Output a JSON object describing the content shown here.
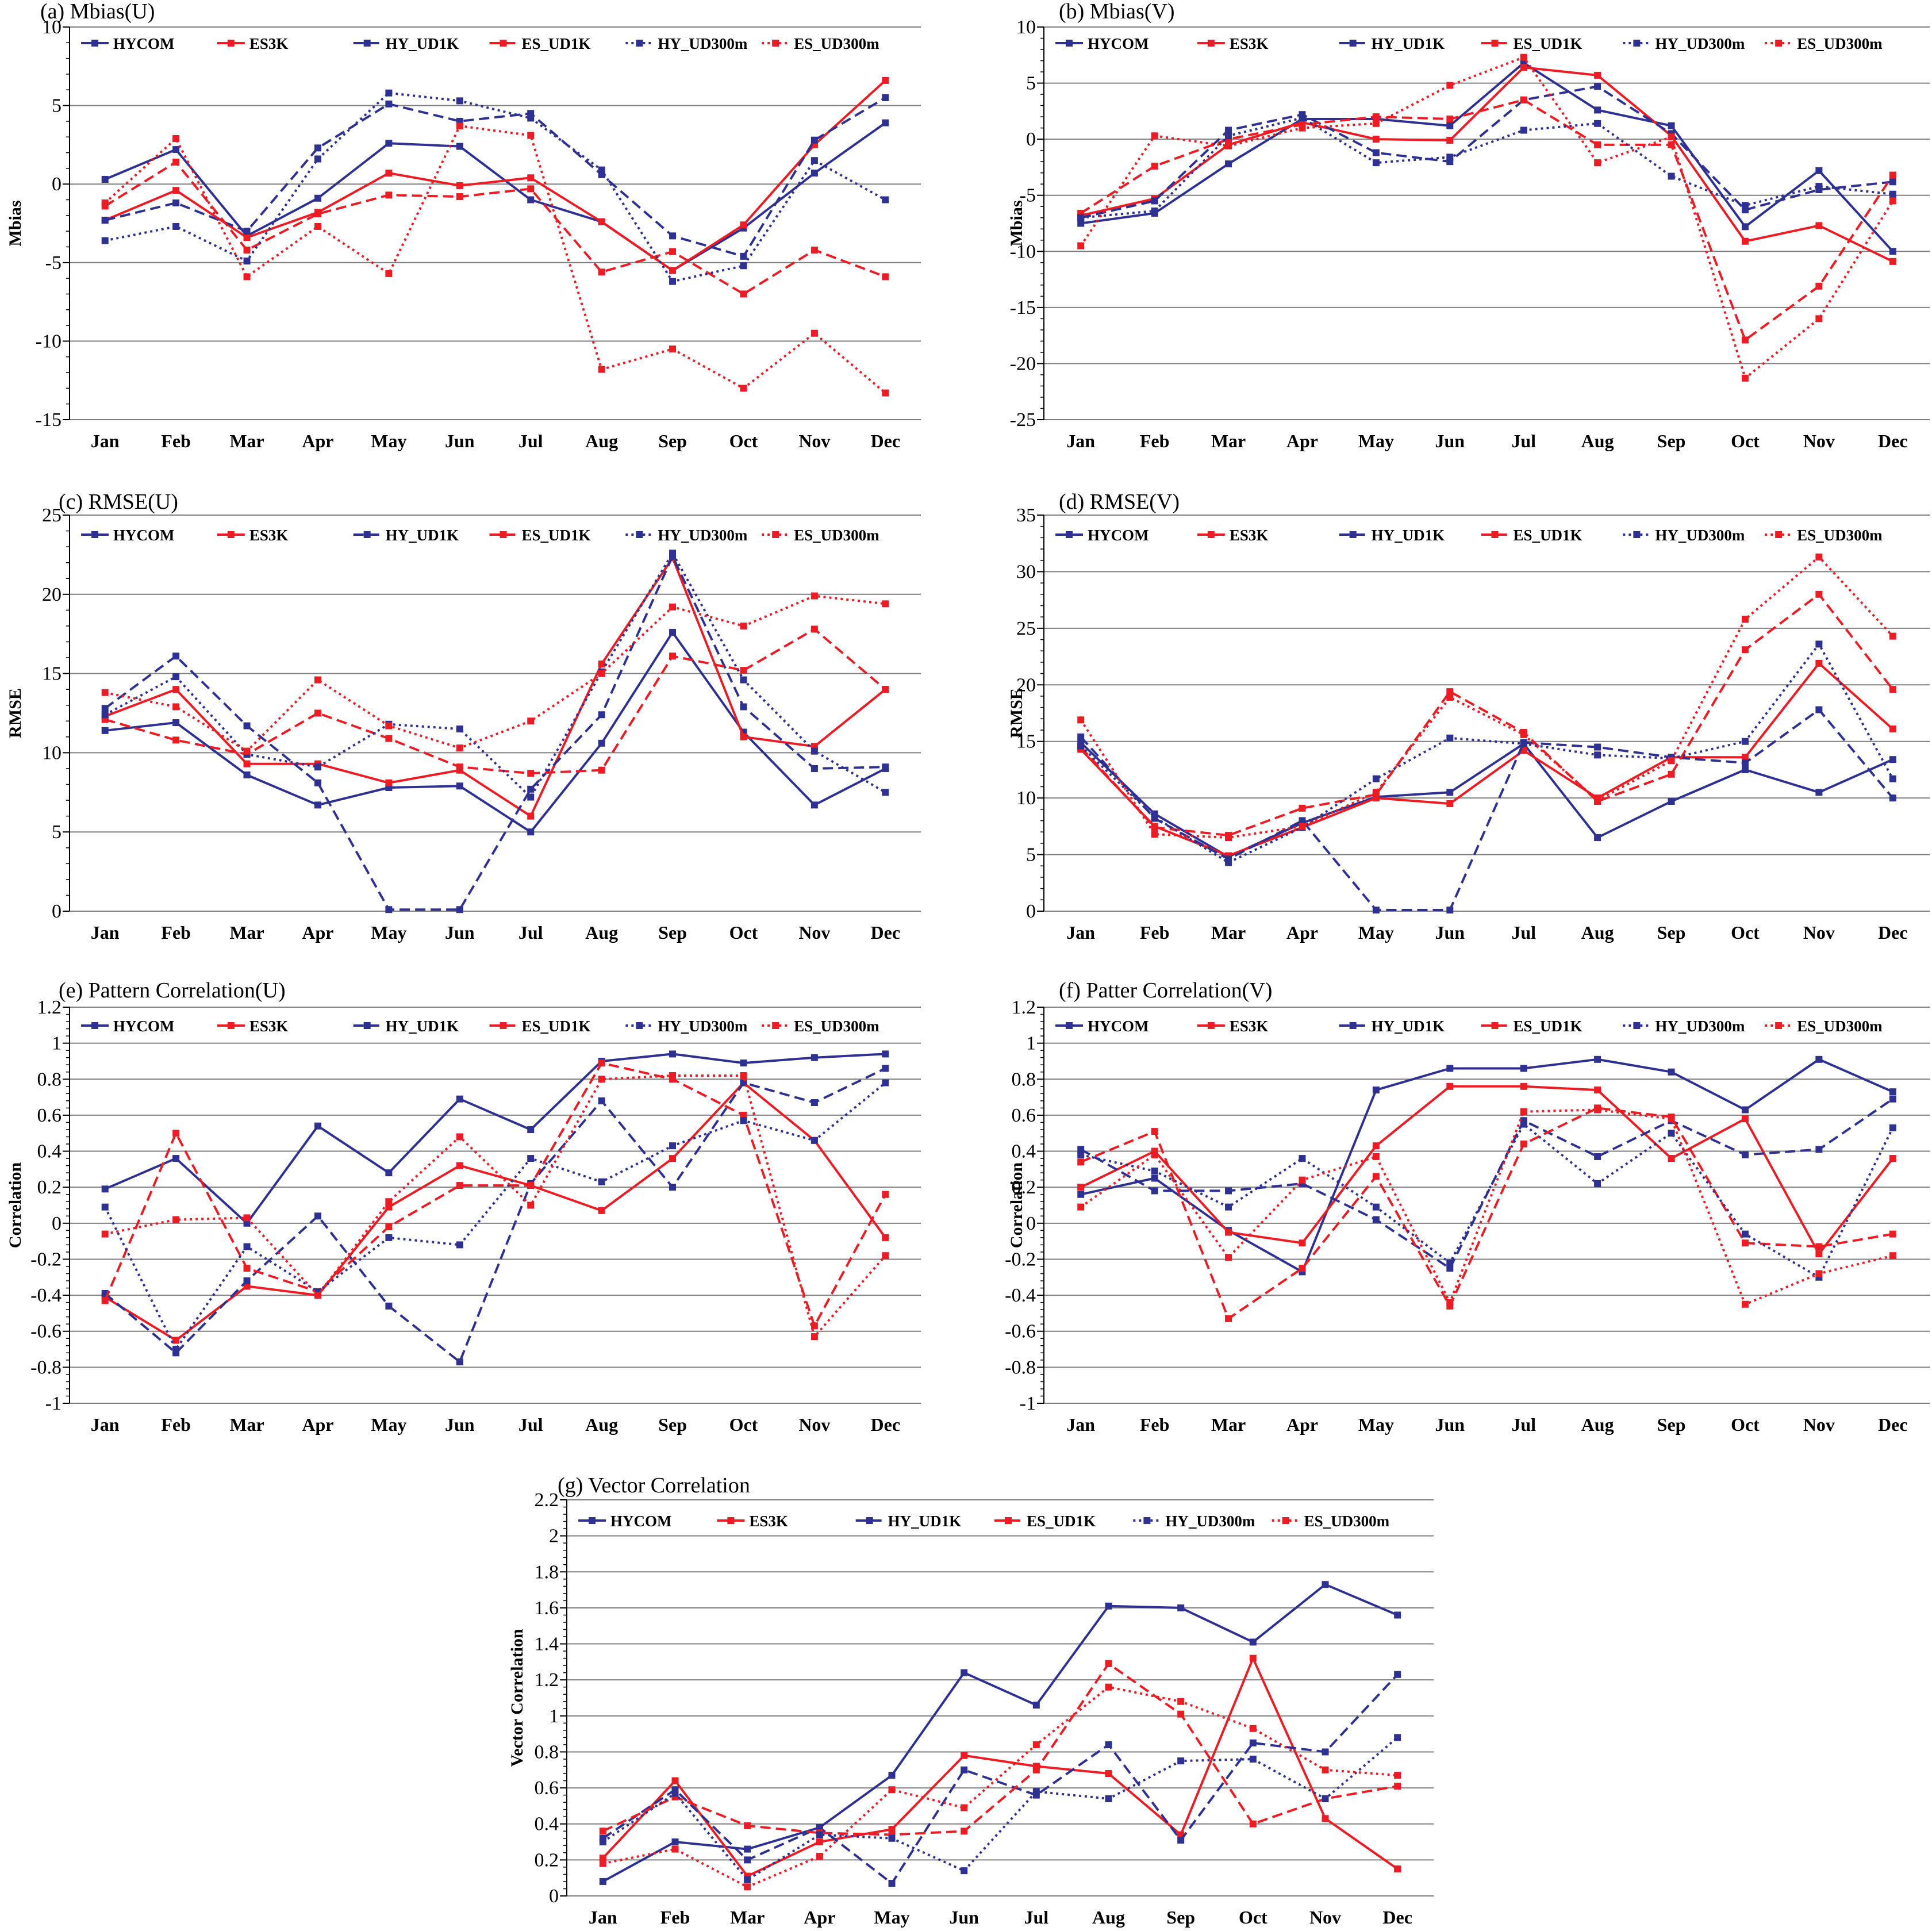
{
  "months": [
    "Jan",
    "Feb",
    "Mar",
    "Apr",
    "May",
    "Jun",
    "Jul",
    "Aug",
    "Sep",
    "Oct",
    "Nov",
    "Dec"
  ],
  "legend": [
    {
      "name": "HYCOM",
      "color": "#2E3192",
      "dash": "solid"
    },
    {
      "name": "ES3K",
      "color": "#ED1C24",
      "dash": "solid"
    },
    {
      "name": "HY_UD1K",
      "color": "#2E3192",
      "dash": "dashed"
    },
    {
      "name": "ES_UD1K",
      "color": "#ED1C24",
      "dash": "dashed"
    },
    {
      "name": "HY_UD300m",
      "color": "#2E3192",
      "dash": "dotted"
    },
    {
      "name": "ES_UD300m",
      "color": "#ED1C24",
      "dash": "dotted"
    }
  ],
  "chart_data": [
    {
      "type": "line",
      "title": "(a) Mbias(U)",
      "ylabel": "Mbias",
      "ylim": [
        -15,
        10
      ],
      "yticks": [
        10,
        5,
        0,
        -5,
        -10,
        -15
      ],
      "ytick_labels": [
        "10",
        "5",
        "0",
        "-5",
        "-10",
        "-15"
      ],
      "series": [
        {
          "name": "HYCOM",
          "values": [
            0.3,
            2.2,
            -3.3,
            -0.9,
            2.6,
            2.4,
            -1.0,
            -2.4,
            -5.5,
            -2.8,
            0.7,
            3.9
          ]
        },
        {
          "name": "ES3K",
          "values": [
            -2.3,
            -0.4,
            -3.4,
            -1.8,
            0.7,
            -0.1,
            0.4,
            -2.4,
            -5.5,
            -2.6,
            2.5,
            6.6
          ]
        },
        {
          "name": "HY_UD1K",
          "values": [
            -2.3,
            -1.2,
            -3.0,
            2.3,
            5.1,
            4.0,
            4.5,
            0.6,
            -3.3,
            -4.6,
            2.8,
            5.5
          ]
        },
        {
          "name": "ES_UD1K",
          "values": [
            -1.4,
            1.4,
            -4.2,
            -1.9,
            -0.7,
            -0.8,
            -0.3,
            -5.6,
            -4.3,
            -7.0,
            -4.2,
            -5.9
          ]
        },
        {
          "name": "HY_UD300m",
          "values": [
            -3.6,
            -2.7,
            -4.9,
            1.6,
            5.8,
            5.3,
            4.2,
            0.9,
            -6.2,
            -5.2,
            1.5,
            -1.0
          ]
        },
        {
          "name": "ES_UD300m",
          "values": [
            -1.2,
            2.9,
            -5.9,
            -2.7,
            -5.7,
            3.7,
            3.1,
            -11.8,
            -10.5,
            -13.0,
            -9.5,
            -13.3
          ]
        }
      ]
    },
    {
      "type": "line",
      "title": "(b) Mbias(V)",
      "ylabel": "Mbias",
      "ylim": [
        -25,
        10
      ],
      "yticks": [
        10,
        5,
        0,
        -5,
        -10,
        -15,
        -20,
        -25
      ],
      "ytick_labels": [
        "10",
        "5",
        "0",
        "-5",
        "-10",
        "-15",
        "-20",
        "-25"
      ],
      "series": [
        {
          "name": "HYCOM",
          "values": [
            -7.5,
            -6.6,
            -2.2,
            1.8,
            1.8,
            1.2,
            6.8,
            2.6,
            1.2,
            -7.8,
            -2.8,
            -10.0
          ]
        },
        {
          "name": "ES3K",
          "values": [
            -6.8,
            -5.3,
            -0.5,
            1.5,
            0.0,
            -0.1,
            6.4,
            5.7,
            0.3,
            -9.1,
            -7.7,
            -10.9
          ]
        },
        {
          "name": "HY_UD1K",
          "values": [
            -7.0,
            -5.5,
            0.8,
            2.2,
            -1.2,
            -2.0,
            3.5,
            4.7,
            0.5,
            -6.3,
            -4.5,
            -3.8
          ]
        },
        {
          "name": "ES_UD1K",
          "values": [
            -6.6,
            -2.4,
            0.0,
            1.3,
            2.0,
            1.8,
            3.5,
            -0.5,
            -0.5,
            -17.9,
            -13.1,
            -3.2
          ]
        },
        {
          "name": "HY_UD300m",
          "values": [
            -7.0,
            -6.4,
            0.3,
            1.9,
            -2.1,
            -1.6,
            0.8,
            1.4,
            -3.3,
            -5.9,
            -4.2,
            -4.9
          ]
        },
        {
          "name": "ES_UD300m",
          "values": [
            -9.5,
            0.3,
            -0.6,
            1.0,
            1.4,
            4.8,
            7.3,
            -2.1,
            0.2,
            -21.3,
            -16.0,
            -5.5
          ]
        }
      ]
    },
    {
      "type": "line",
      "title": "(c) RMSE(U)",
      "ylabel": "RMSE",
      "ylim": [
        0,
        25
      ],
      "yticks": [
        25,
        20,
        15,
        10,
        5,
        0
      ],
      "ytick_labels": [
        "25",
        "20",
        "15",
        "10",
        "5",
        "0"
      ],
      "series": [
        {
          "name": "HYCOM",
          "values": [
            11.4,
            11.9,
            8.6,
            6.7,
            7.8,
            7.9,
            5.0,
            10.6,
            17.6,
            11.3,
            6.7,
            9.0
          ]
        },
        {
          "name": "ES3K",
          "values": [
            12.3,
            14.0,
            9.3,
            9.3,
            8.1,
            8.9,
            6.0,
            15.6,
            22.3,
            11.0,
            10.4,
            14.0
          ]
        },
        {
          "name": "HY_UD1K",
          "values": [
            12.8,
            16.1,
            11.7,
            8.1,
            0.1,
            0.1,
            7.7,
            12.4,
            22.4,
            12.9,
            9.0,
            9.1
          ]
        },
        {
          "name": "ES_UD1K",
          "values": [
            12.1,
            10.8,
            9.9,
            12.5,
            10.9,
            9.1,
            8.7,
            8.9,
            16.1,
            15.2,
            17.8,
            14.0
          ]
        },
        {
          "name": "HY_UD300m",
          "values": [
            12.4,
            14.8,
            9.9,
            9.1,
            11.8,
            11.5,
            7.2,
            15.1,
            22.6,
            14.6,
            10.1,
            7.5
          ]
        },
        {
          "name": "ES_UD300m",
          "values": [
            13.8,
            12.9,
            10.1,
            14.6,
            11.7,
            10.3,
            12.0,
            15.0,
            19.2,
            18.0,
            19.9,
            19.4
          ]
        }
      ]
    },
    {
      "type": "line",
      "title": "(d) RMSE(V)",
      "ylabel": "RMSE",
      "ylim": [
        0,
        35
      ],
      "yticks": [
        35,
        30,
        25,
        20,
        15,
        10,
        5,
        0
      ],
      "ytick_labels": [
        "35",
        "30",
        "25",
        "20",
        "15",
        "10",
        "5",
        "0"
      ],
      "series": [
        {
          "name": "HYCOM",
          "values": [
            14.9,
            8.6,
            4.8,
            7.8,
            10.1,
            10.5,
            14.8,
            6.5,
            9.7,
            12.5,
            10.5,
            13.4
          ]
        },
        {
          "name": "ES3K",
          "values": [
            14.3,
            7.5,
            4.9,
            7.4,
            10.0,
            9.5,
            14.2,
            10.0,
            13.6,
            13.6,
            21.9,
            16.1
          ]
        },
        {
          "name": "HY_UD1K",
          "values": [
            15.4,
            8.2,
            4.6,
            8.0,
            0.1,
            0.1,
            14.9,
            14.5,
            13.6,
            13.1,
            17.8,
            10.0
          ]
        },
        {
          "name": "ES_UD1K",
          "values": [
            14.5,
            7.4,
            6.7,
            9.1,
            10.3,
            19.4,
            15.8,
            9.7,
            12.1,
            23.1,
            28.0,
            19.6
          ]
        },
        {
          "name": "HY_UD300m",
          "values": [
            14.6,
            8.3,
            4.3,
            7.4,
            11.7,
            15.3,
            14.8,
            13.8,
            13.5,
            15.0,
            23.6,
            11.7
          ]
        },
        {
          "name": "ES_UD300m",
          "values": [
            16.9,
            6.8,
            6.5,
            7.5,
            10.5,
            18.9,
            15.6,
            9.8,
            13.3,
            25.8,
            31.3,
            24.3
          ]
        }
      ]
    },
    {
      "type": "line",
      "title": "(e) Pattern Correlation(U)",
      "ylabel": "Correlation",
      "ylim": [
        -1,
        1.2
      ],
      "yticks": [
        1.2,
        1,
        0.8,
        0.6,
        0.4,
        0.2,
        0,
        -0.2,
        -0.4,
        -0.6,
        -0.8,
        -1
      ],
      "ytick_labels": [
        "1.2",
        "1",
        "0.8",
        "0.6",
        "0.4",
        "0.2",
        "0",
        "-0.2",
        "-0.4",
        "-0.6",
        "-0.8",
        "-1"
      ],
      "series": [
        {
          "name": "HYCOM",
          "values": [
            0.19,
            0.36,
            0.0,
            0.54,
            0.28,
            0.69,
            0.52,
            0.9,
            0.94,
            0.89,
            0.92,
            0.94
          ]
        },
        {
          "name": "ES3K",
          "values": [
            -0.41,
            -0.65,
            -0.35,
            -0.4,
            0.09,
            0.32,
            0.21,
            0.07,
            0.36,
            0.78,
            0.46,
            -0.08
          ]
        },
        {
          "name": "HY_UD1K",
          "values": [
            -0.39,
            -0.72,
            -0.32,
            0.04,
            -0.46,
            -0.77,
            0.22,
            0.68,
            0.2,
            0.78,
            0.67,
            0.86
          ]
        },
        {
          "name": "ES_UD1K",
          "values": [
            -0.43,
            0.5,
            -0.25,
            -0.38,
            -0.02,
            0.21,
            0.21,
            0.89,
            0.8,
            0.6,
            -0.57,
            0.16
          ]
        },
        {
          "name": "HY_UD300m",
          "values": [
            0.09,
            -0.7,
            -0.13,
            -0.38,
            -0.08,
            -0.12,
            0.36,
            0.23,
            0.43,
            0.57,
            0.46,
            0.78
          ]
        },
        {
          "name": "ES_UD300m",
          "values": [
            -0.06,
            0.02,
            0.03,
            -0.4,
            0.12,
            0.48,
            0.1,
            0.8,
            0.82,
            0.82,
            -0.63,
            -0.18
          ]
        }
      ]
    },
    {
      "type": "line",
      "title": "(f) Patter Correlation(V)",
      "ylabel": "Correlation",
      "ylim": [
        -1,
        1.2
      ],
      "yticks": [
        1.2,
        1,
        0.8,
        0.6,
        0.4,
        0.2,
        0,
        -0.2,
        -0.4,
        -0.6,
        -0.8,
        -1
      ],
      "ytick_labels": [
        "1.2",
        "1",
        "0.8",
        "0.6",
        "0.4",
        "0.2",
        "0",
        "-0.2",
        "-0.4",
        "-0.6",
        "-0.8",
        "-1"
      ],
      "series": [
        {
          "name": "HYCOM",
          "values": [
            0.16,
            0.25,
            -0.04,
            -0.27,
            0.74,
            0.86,
            0.86,
            0.91,
            0.84,
            0.63,
            0.91,
            0.73
          ]
        },
        {
          "name": "ES3K",
          "values": [
            0.2,
            0.4,
            -0.05,
            -0.11,
            0.43,
            0.76,
            0.76,
            0.74,
            0.36,
            0.58,
            -0.17,
            0.36
          ]
        },
        {
          "name": "HY_UD1K",
          "values": [
            0.41,
            0.18,
            0.18,
            0.22,
            0.02,
            -0.25,
            0.57,
            0.37,
            0.57,
            0.38,
            0.41,
            0.69
          ]
        },
        {
          "name": "ES_UD1K",
          "values": [
            0.34,
            0.51,
            -0.53,
            -0.25,
            0.26,
            -0.46,
            0.44,
            0.64,
            0.59,
            -0.11,
            -0.13,
            -0.06
          ]
        },
        {
          "name": "HY_UD300m",
          "values": [
            0.38,
            0.29,
            0.09,
            0.36,
            0.09,
            -0.22,
            0.55,
            0.22,
            0.5,
            -0.06,
            -0.3,
            0.53
          ]
        },
        {
          "name": "ES_UD300m",
          "values": [
            0.09,
            0.38,
            -0.19,
            0.24,
            0.37,
            -0.44,
            0.62,
            0.63,
            0.58,
            -0.45,
            -0.28,
            -0.18
          ]
        }
      ]
    },
    {
      "type": "line",
      "title": "(g) Vector Correlation",
      "ylabel": "Vector Correlation",
      "ylim": [
        0,
        2.2
      ],
      "yticks": [
        2.2,
        2,
        1.8,
        1.6,
        1.4,
        1.2,
        1,
        0.8,
        0.6,
        0.4,
        0.2,
        0
      ],
      "ytick_labels": [
        "2.2",
        "2",
        "1.8",
        "1.6",
        "1.4",
        "1.2",
        "1",
        "0.8",
        "0.6",
        "0.4",
        "0.2",
        "0"
      ],
      "series": [
        {
          "name": "HYCOM",
          "values": [
            0.08,
            0.3,
            0.26,
            0.38,
            0.67,
            1.24,
            1.06,
            1.61,
            1.6,
            1.41,
            1.73,
            1.56
          ]
        },
        {
          "name": "ES3K",
          "values": [
            0.21,
            0.64,
            0.11,
            0.3,
            0.37,
            0.78,
            0.72,
            0.68,
            0.34,
            1.32,
            0.43,
            0.15
          ]
        },
        {
          "name": "HY_UD1K",
          "values": [
            0.32,
            0.59,
            0.2,
            0.38,
            0.07,
            0.7,
            0.56,
            0.84,
            0.31,
            0.85,
            0.8,
            1.23
          ]
        },
        {
          "name": "ES_UD1K",
          "values": [
            0.36,
            0.55,
            0.39,
            0.35,
            0.34,
            0.36,
            0.7,
            1.29,
            1.01,
            0.4,
            0.54,
            0.61
          ]
        },
        {
          "name": "HY_UD300m",
          "values": [
            0.3,
            0.57,
            0.09,
            0.34,
            0.32,
            0.14,
            0.58,
            0.54,
            0.75,
            0.76,
            0.54,
            0.88
          ]
        },
        {
          "name": "ES_UD300m",
          "values": [
            0.18,
            0.26,
            0.05,
            0.22,
            0.59,
            0.49,
            0.84,
            1.16,
            1.08,
            0.93,
            0.7,
            0.67
          ]
        }
      ]
    }
  ]
}
